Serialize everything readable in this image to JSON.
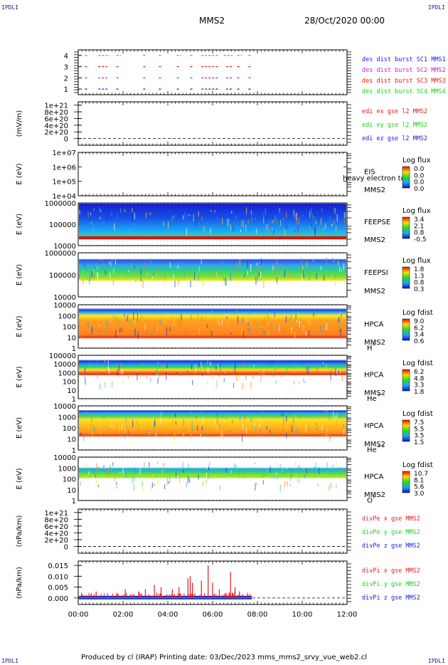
{
  "header": {
    "corner_label": "IPDLI",
    "title": "MMS2",
    "date": "28/Oct/2020 00:00"
  },
  "footer": {
    "text": "Produced by cl (IRAP)    Printing date: 03/Dec/2023    mms_mms2_srvy_vue_web2.cl"
  },
  "colors": {
    "blue": "#1a1ae6",
    "red": "#e61a1a",
    "green": "#1ad21a",
    "magenta": "#d21ad2",
    "dashed": "#000000"
  },
  "chart_data": [
    {
      "id": "burst",
      "type": "scatter",
      "ylim": [
        0.5,
        4.5
      ],
      "yticks": [
        "1",
        "2",
        "3",
        "4"
      ],
      "legend": [
        {
          "text": "des dist burst SC1 MMS1",
          "color": "#1a1ae6"
        },
        {
          "text": "des dist burst SC2 MMS2",
          "color": "#d21ad2"
        },
        {
          "text": "des dist burst SC3 MMS3",
          "color": "#e61a1a"
        },
        {
          "text": "des dist burst SC4 MMS4",
          "color": "#1ad21a"
        }
      ],
      "series": [
        {
          "level": 4,
          "color": "#1ad21a",
          "segments": [
            [
              0.3,
              0.45
            ],
            [
              0.9,
              1.4
            ],
            [
              1.7,
              1.9
            ],
            [
              2.9,
              3.0
            ],
            [
              3.6,
              3.7
            ],
            [
              4.4,
              4.6
            ],
            [
              5.0,
              5.1
            ],
            [
              5.5,
              6.3
            ],
            [
              6.5,
              6.9
            ],
            [
              7.1,
              7.3
            ],
            [
              7.6,
              7.7
            ]
          ]
        },
        {
          "level": 3,
          "color": "#e61a1a",
          "segments": [
            [
              0.3,
              0.4
            ],
            [
              0.9,
              1.3
            ],
            [
              1.7,
              1.8
            ],
            [
              2.9,
              3.0
            ],
            [
              3.6,
              3.7
            ],
            [
              4.4,
              4.5
            ],
            [
              5.0,
              5.1
            ],
            [
              5.5,
              6.3
            ],
            [
              6.6,
              6.9
            ],
            [
              7.1,
              7.2
            ],
            [
              7.6,
              7.7
            ]
          ]
        },
        {
          "level": 2,
          "color": "#d21ad2",
          "segments": [
            [
              0.3,
              0.4
            ],
            [
              0.9,
              1.3
            ],
            [
              1.7,
              1.8
            ],
            [
              2.9,
              3.0
            ],
            [
              3.6,
              3.7
            ],
            [
              4.4,
              4.5
            ],
            [
              5.0,
              5.1
            ],
            [
              5.5,
              6.3
            ],
            [
              6.6,
              6.9
            ],
            [
              7.1,
              7.2
            ],
            [
              7.6,
              7.7
            ]
          ]
        },
        {
          "level": 1,
          "color": "#1a1ae6",
          "segments": [
            [
              0.3,
              0.4
            ],
            [
              0.9,
              1.3
            ],
            [
              1.7,
              1.8
            ],
            [
              2.9,
              3.0
            ],
            [
              3.6,
              3.7
            ],
            [
              4.4,
              4.5
            ],
            [
              5.0,
              5.1
            ],
            [
              5.5,
              6.3
            ],
            [
              6.6,
              6.9
            ],
            [
              7.1,
              7.2
            ],
            [
              7.6,
              7.7
            ]
          ]
        }
      ]
    },
    {
      "id": "edi",
      "type": "line",
      "ylabel": "(mV/m)",
      "ylim": [
        -2e+20,
        1.1e+21
      ],
      "yticks": [
        {
          "v": 1e+21,
          "t": "1e+21"
        },
        {
          "v": 8e+20,
          "t": "8e+20"
        },
        {
          "v": 6e+20,
          "t": "6e+20"
        },
        {
          "v": 4e+20,
          "t": "4e+20"
        },
        {
          "v": 2e+20,
          "t": "2e+20"
        },
        {
          "v": 0,
          "t": "0"
        }
      ],
      "dashed_zero": true,
      "legend": [
        {
          "text": "edi ex gse l2 MMS2",
          "color": "#e61a1a"
        },
        {
          "text": "edi ey gse l2 MMS2",
          "color": "#1ad21a"
        },
        {
          "text": "edi ez gse l2 MMS2",
          "color": "#1a1ae6"
        }
      ]
    },
    {
      "id": "eis",
      "type": "heatmap",
      "ylabel": "E (eV)",
      "yticks": [
        "1e+07",
        "1e+06",
        "1e+05",
        "1e+04"
      ],
      "instrument": "EIS",
      "overlay": "heavy electron to",
      "sc": "MMS2",
      "colorbar": {
        "title": "Log flux",
        "labels": [
          "0.0",
          "0.0",
          "0.0",
          "0.0"
        ]
      }
    },
    {
      "id": "feepse",
      "type": "heatmap",
      "ylabel": "E (eV)",
      "yticks": [
        "1000000",
        "100000",
        "10000"
      ],
      "instrument": "FEEPSE",
      "sc": "MMS2",
      "colorbar": {
        "title": "Log flux",
        "labels": [
          "3.4",
          "2.1",
          "0.8",
          "-0.5"
        ]
      }
    },
    {
      "id": "feepsi",
      "type": "heatmap",
      "ylabel": "E (eV)",
      "yticks": [
        "1000000",
        "100000",
        "10000"
      ],
      "instrument": "FEEPSI",
      "sc": "MMS2",
      "colorbar": {
        "title": "Log flux",
        "labels": [
          "1.8",
          "1.3",
          "0.8",
          "0.3"
        ]
      }
    },
    {
      "id": "hpca_h",
      "type": "heatmap",
      "ylabel": "E (eV)",
      "yticks": [
        "10000",
        "1000",
        "100",
        "10",
        "1"
      ],
      "instrument": "HPCA",
      "sc": "MMS2",
      "species": "H",
      "charge": "+",
      "colorbar": {
        "title": "Log fdist",
        "labels": [
          "9.0",
          "6.2",
          "3.4",
          "0.6"
        ]
      }
    },
    {
      "id": "hpca_he",
      "type": "heatmap",
      "ylabel": "E (eV)",
      "yticks": [
        "100000",
        "10000",
        "1000",
        "100",
        "10",
        "1"
      ],
      "instrument": "HPCA",
      "sc": "MMS2",
      "species": "He",
      "charge": "+",
      "colorbar": {
        "title": "Log fdist",
        "labels": [
          "6.2",
          "4.8",
          "3.3",
          "1.8"
        ]
      }
    },
    {
      "id": "hpca_hepp",
      "type": "heatmap",
      "ylabel": "E (eV)",
      "yticks": [
        "10000",
        "1000",
        "100",
        "10",
        "1"
      ],
      "instrument": "HPCA",
      "sc": "MMS2",
      "species": "He",
      "charge": "++",
      "colorbar": {
        "title": "Log fdist",
        "labels": [
          "7.5",
          "5.5",
          "3.5",
          "1.5"
        ]
      }
    },
    {
      "id": "hpca_o",
      "type": "heatmap",
      "ylabel": "E (eV)",
      "yticks": [
        "10000",
        "1000",
        "100",
        "10",
        "1"
      ],
      "instrument": "HPCA",
      "sc": "MMS2",
      "species": "O",
      "charge": "+",
      "colorbar": {
        "title": "Log fdist",
        "labels": [
          "10.7",
          "8.1",
          "5.6",
          "3.0"
        ]
      }
    },
    {
      "id": "divpe",
      "type": "line",
      "ylabel": "(nPa/km)",
      "ylim": [
        -2e+20,
        1.1e+21
      ],
      "yticks": [
        {
          "v": 1e+21,
          "t": "1e+21"
        },
        {
          "v": 8e+20,
          "t": "8e+20"
        },
        {
          "v": 6e+20,
          "t": "6e+20"
        },
        {
          "v": 4e+20,
          "t": "4e+20"
        },
        {
          "v": 2e+20,
          "t": "2e+20"
        },
        {
          "v": 0,
          "t": "0"
        }
      ],
      "dashed_zero": true,
      "legend": [
        {
          "text": "divPe x gse MMS2",
          "color": "#e61a1a"
        },
        {
          "text": "divPe y gse MMS2",
          "color": "#1ad21a"
        },
        {
          "text": "divPe z gse MMS2",
          "color": "#1a1ae6"
        }
      ]
    },
    {
      "id": "divpi",
      "type": "line",
      "ylabel": "(nPa/km)",
      "ylim": [
        -0.003,
        0.017
      ],
      "yticks": [
        {
          "v": 0.015,
          "t": "0.015"
        },
        {
          "v": 0.01,
          "t": "0.010"
        },
        {
          "v": 0.005,
          "t": "0.005"
        },
        {
          "v": 0,
          "t": "0.000"
        }
      ],
      "dashed_zero": true,
      "data_end_hour": 7.75,
      "spikes": [
        [
          0.8,
          0.003
        ],
        [
          2.1,
          0.004
        ],
        [
          2.7,
          0.003
        ],
        [
          3.0,
          0.004
        ],
        [
          3.4,
          0.006
        ],
        [
          3.7,
          0.005
        ],
        [
          4.2,
          0.004
        ],
        [
          4.5,
          0.005
        ],
        [
          4.9,
          0.009
        ],
        [
          5.0,
          0.01
        ],
        [
          5.1,
          0.007
        ],
        [
          5.5,
          0.008
        ],
        [
          5.8,
          0.015
        ],
        [
          6.0,
          0.007
        ],
        [
          6.3,
          0.004
        ],
        [
          6.8,
          0.012
        ],
        [
          7.0,
          0.005
        ],
        [
          7.2,
          0.003
        ]
      ],
      "legend": [
        {
          "text": "divPi x gse MMS2",
          "color": "#e61a1a"
        },
        {
          "text": "divPi y gse MMS2",
          "color": "#1ad21a"
        },
        {
          "text": "divPi z gse MMS2",
          "color": "#1a1ae6"
        }
      ]
    }
  ],
  "xaxis": {
    "range": [
      0,
      12
    ],
    "ticks": [
      "00:00",
      "02:00",
      "04:00",
      "06:00",
      "08:00",
      "10:00",
      "12:00"
    ]
  }
}
